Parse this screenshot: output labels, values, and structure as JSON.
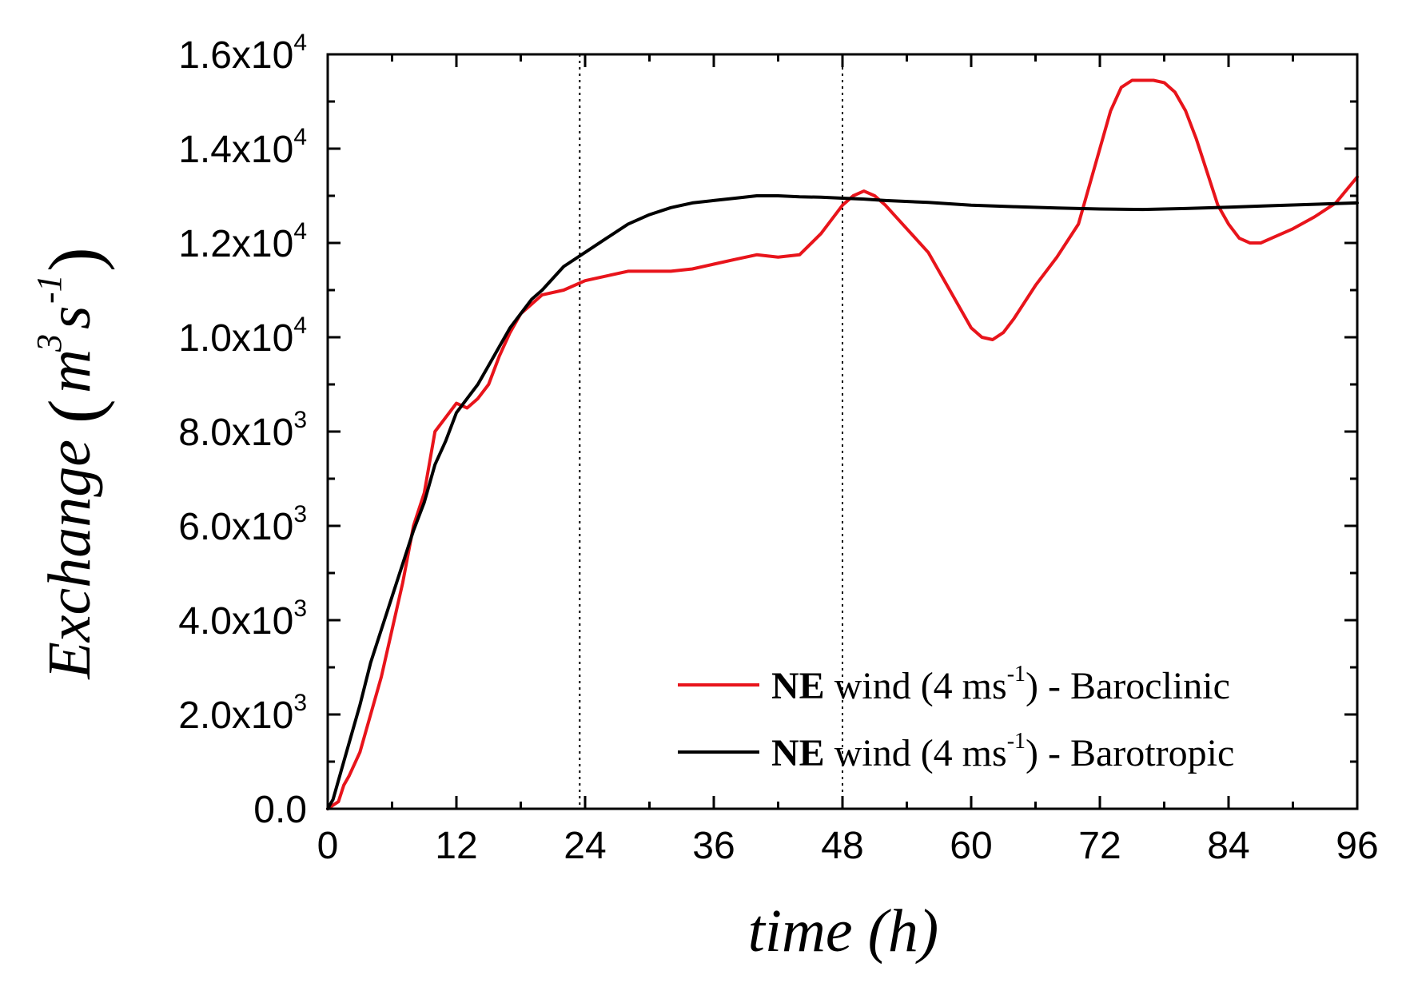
{
  "chart_data": {
    "type": "line",
    "title": "",
    "xlabel": "time (h)",
    "ylabel": {
      "base": "Exchange",
      "unit_m": "m",
      "unit_m_exp": "3",
      "unit_s": "s",
      "unit_s_exp": "-1"
    },
    "xlim": [
      0,
      96
    ],
    "ylim": [
      0,
      16000
    ],
    "x_ticks": [
      0,
      12,
      24,
      36,
      48,
      60,
      72,
      84,
      96
    ],
    "x_tick_labels": [
      "0",
      "12",
      "24",
      "36",
      "48",
      "60",
      "72",
      "84",
      "96"
    ],
    "y_ticks": [
      {
        "value": 0,
        "mantissa": "0.0",
        "exp": ""
      },
      {
        "value": 2000,
        "mantissa": "2.0x10",
        "exp": "3"
      },
      {
        "value": 4000,
        "mantissa": "4.0x10",
        "exp": "3"
      },
      {
        "value": 6000,
        "mantissa": "6.0x10",
        "exp": "3"
      },
      {
        "value": 8000,
        "mantissa": "8.0x10",
        "exp": "3"
      },
      {
        "value": 10000,
        "mantissa": "1.0x10",
        "exp": "4"
      },
      {
        "value": 12000,
        "mantissa": "1.2x10",
        "exp": "4"
      },
      {
        "value": 14000,
        "mantissa": "1.4x10",
        "exp": "4"
      },
      {
        "value": 16000,
        "mantissa": "1.6x10",
        "exp": "4"
      }
    ],
    "vertical_reference_lines": [
      23.5,
      48
    ],
    "legend_position": "bottom-right",
    "series": [
      {
        "name": "NE wind (4 ms-1) - Baroclinic",
        "legend": {
          "bold": "NE",
          "pre": " wind (4 ms",
          "sup": "-1",
          "post": ") - Baroclinic"
        },
        "color": "#e8141b",
        "x": [
          0,
          1,
          1.5,
          2,
          3,
          4,
          5,
          6,
          7,
          8,
          9,
          10,
          11,
          12,
          13,
          14,
          15,
          16,
          17,
          18,
          19,
          20,
          22,
          24,
          26,
          28,
          30,
          32,
          34,
          36,
          38,
          40,
          42,
          44,
          46,
          48,
          49,
          50,
          51,
          52,
          54,
          56,
          58,
          60,
          61,
          62,
          63,
          64,
          66,
          68,
          70,
          72,
          73,
          74,
          75,
          76,
          77,
          78,
          79,
          80,
          81,
          82,
          83,
          84,
          85,
          86,
          87,
          88,
          90,
          92,
          94,
          96
        ],
        "values": [
          0,
          150,
          500,
          700,
          1200,
          2000,
          2800,
          3800,
          4800,
          6000,
          6700,
          8000,
          8300,
          8600,
          8500,
          8700,
          9000,
          9600,
          10100,
          10500,
          10700,
          10900,
          11000,
          11200,
          11300,
          11400,
          11400,
          11400,
          11450,
          11550,
          11650,
          11750,
          11700,
          11750,
          12200,
          12800,
          13000,
          13100,
          13000,
          12800,
          12300,
          11800,
          11000,
          10200,
          10000,
          9950,
          10100,
          10400,
          11100,
          11700,
          12400,
          14000,
          14800,
          15300,
          15450,
          15450,
          15450,
          15400,
          15200,
          14800,
          14200,
          13500,
          12800,
          12400,
          12100,
          12000,
          12000,
          12100,
          12300,
          12550,
          12850,
          13400
        ]
      },
      {
        "name": "NE wind (4 ms-1) - Barotropic",
        "legend": {
          "bold": "NE",
          "pre": " wind (4 ms",
          "sup": "-1",
          "post": ") - Barotropic"
        },
        "color": "#000000",
        "x": [
          0,
          0.5,
          1,
          2,
          3,
          4,
          5,
          6,
          7,
          8,
          9,
          10,
          11,
          12,
          13,
          14,
          15,
          16,
          17,
          18,
          19,
          20,
          22,
          24,
          26,
          28,
          30,
          32,
          34,
          36,
          38,
          40,
          42,
          44,
          46,
          48,
          50,
          52,
          56,
          60,
          64,
          68,
          72,
          76,
          80,
          84,
          88,
          92,
          96
        ],
        "values": [
          0,
          200,
          600,
          1400,
          2200,
          3100,
          3800,
          4500,
          5200,
          5900,
          6500,
          7300,
          7800,
          8400,
          8700,
          9000,
          9400,
          9800,
          10200,
          10500,
          10800,
          11000,
          11500,
          11800,
          12100,
          12400,
          12600,
          12750,
          12850,
          12900,
          12950,
          13000,
          13000,
          12980,
          12970,
          12950,
          12930,
          12900,
          12860,
          12800,
          12770,
          12740,
          12720,
          12710,
          12730,
          12760,
          12790,
          12820,
          12850
        ]
      }
    ]
  }
}
